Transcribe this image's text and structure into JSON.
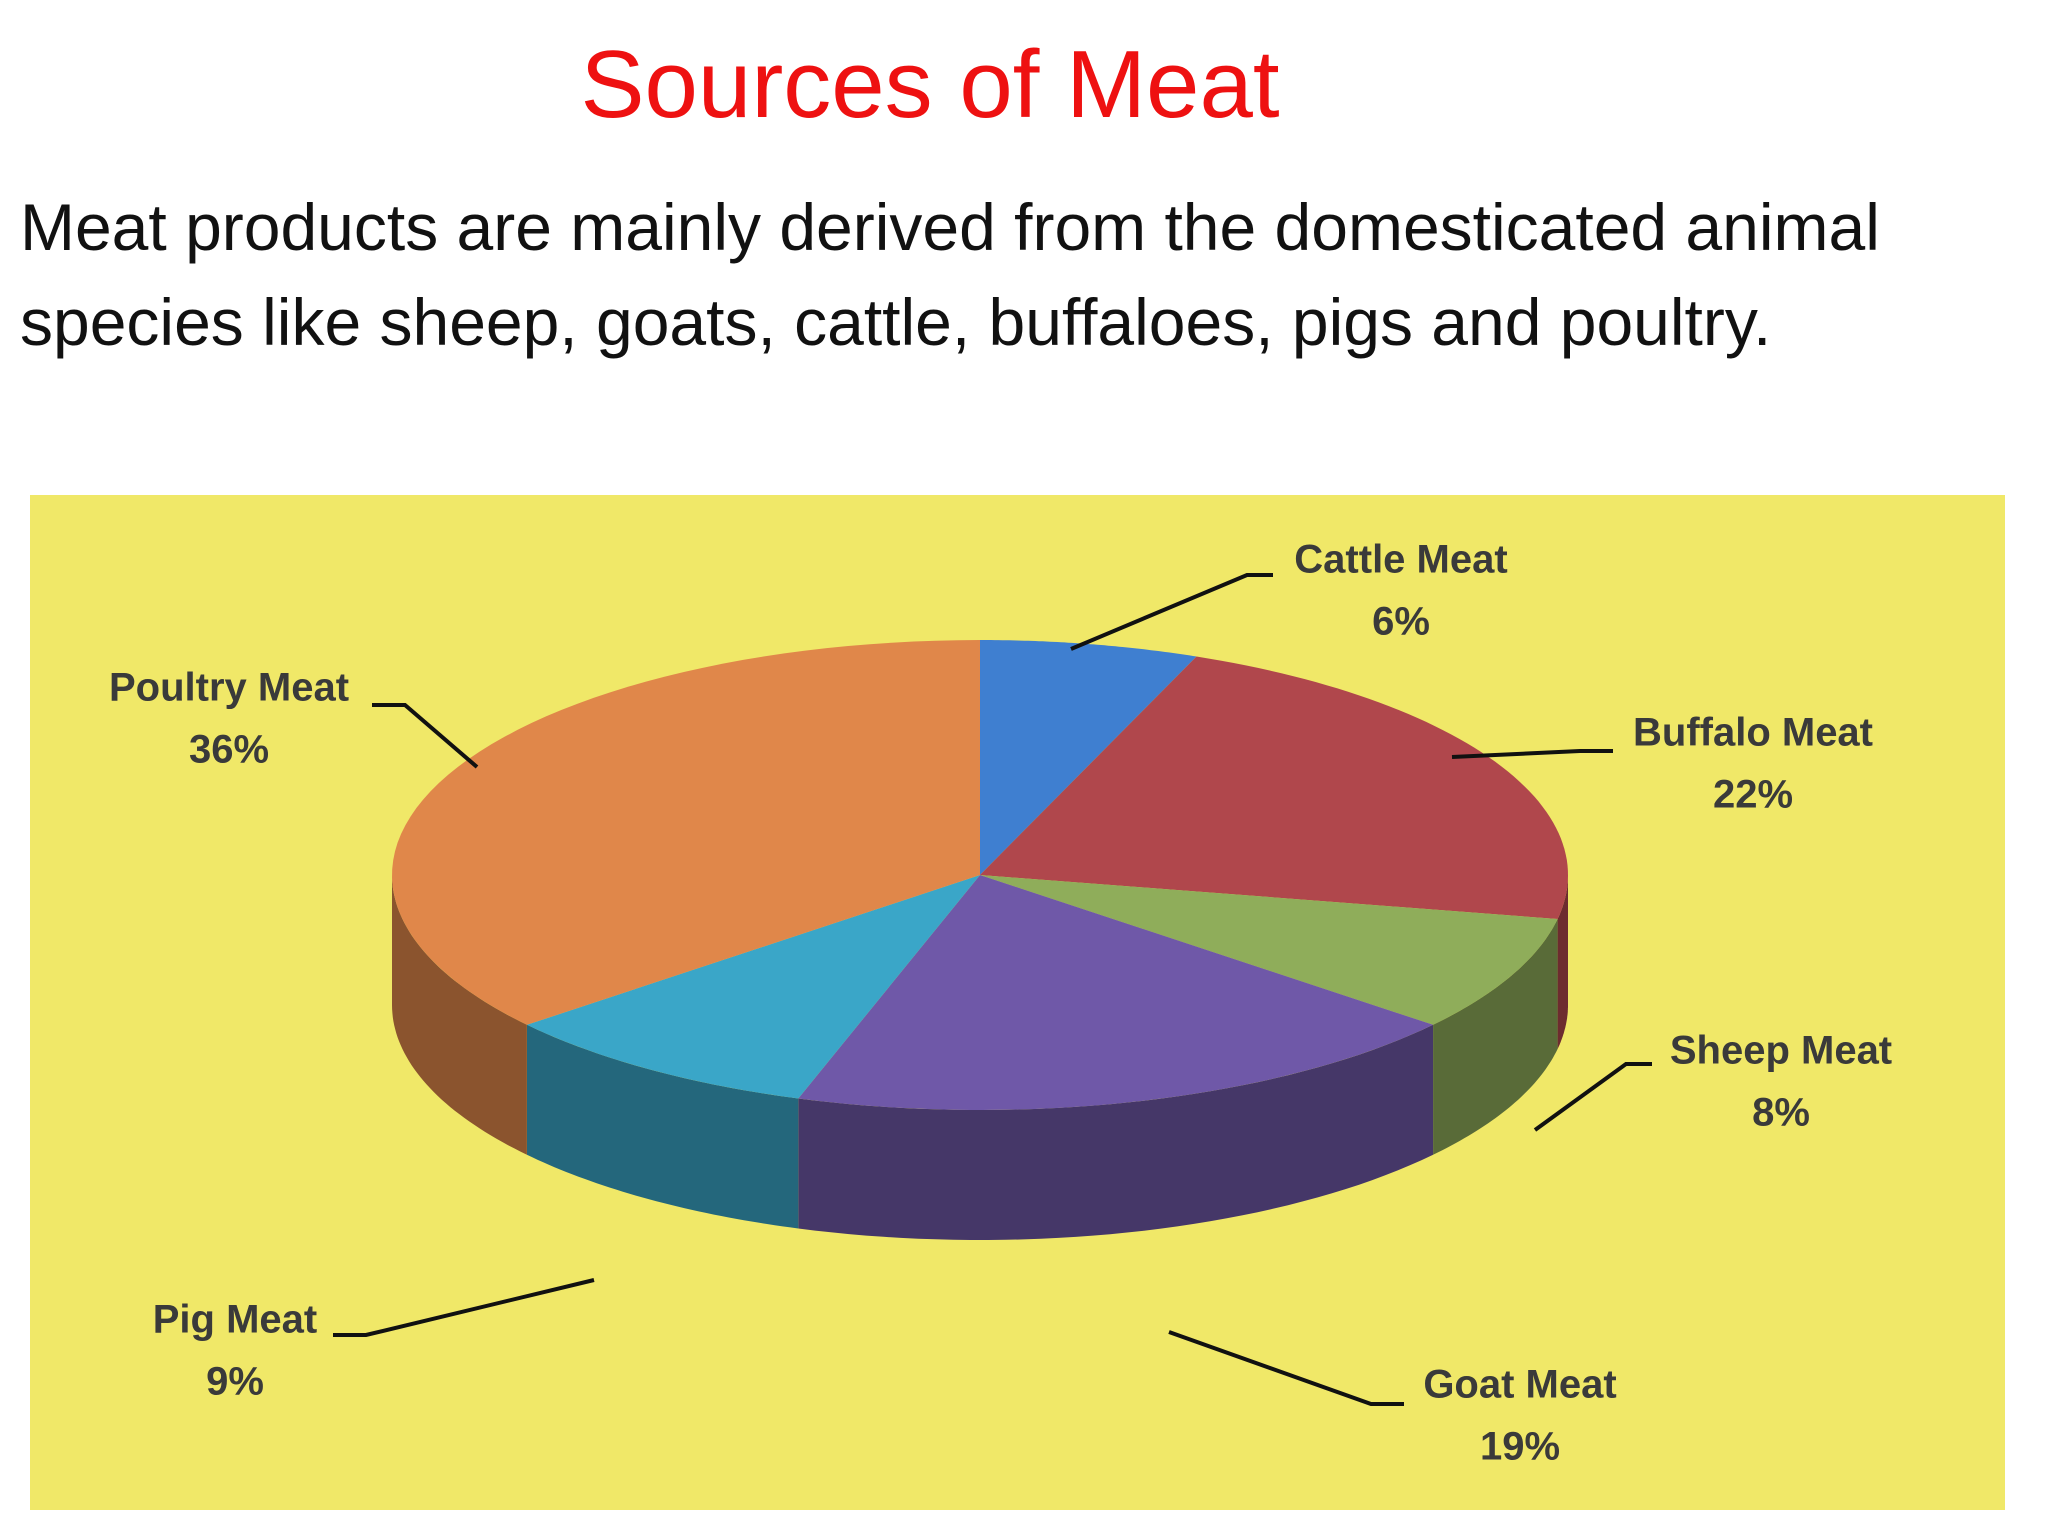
{
  "chart_data": {
    "type": "pie",
    "title": "Sources of Meat",
    "subtitle": "Meat products are mainly derived from the domesticated animal species like sheep, goats, cattle, buffaloes, pigs and poultry.",
    "categories": [
      "Cattle Meat",
      "Buffalo Meat",
      "Sheep Meat",
      "Goat Meat",
      "Pig Meat",
      "Poultry Meat"
    ],
    "values": [
      6,
      22,
      8,
      19,
      9,
      36
    ],
    "value_labels": [
      "6%",
      "22%",
      "8%",
      "19%",
      "9%",
      "36%"
    ],
    "colors": [
      "#3f7fd0",
      "#b0474c",
      "#8fad5a",
      "#6f58a8",
      "#3aa6c8",
      "#e0874a"
    ]
  }
}
